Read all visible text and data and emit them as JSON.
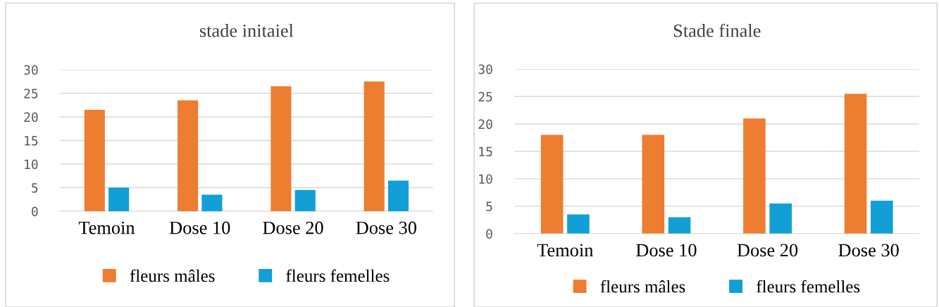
{
  "chart_data": [
    {
      "type": "bar",
      "title": "stade initaiel",
      "categories": [
        "Temoin",
        "Dose 10",
        "Dose 20",
        "Dose 30"
      ],
      "series": [
        {
          "name": "fleurs mâles",
          "color": "#ed7d31",
          "values": [
            21.5,
            23.5,
            26.5,
            27.5
          ]
        },
        {
          "name": "fleurs femelles",
          "color": "#119fd6",
          "values": [
            5,
            3.5,
            4.5,
            6.5
          ]
        }
      ],
      "ylim": [
        0,
        30
      ],
      "yticks": [
        0,
        5,
        10,
        15,
        20,
        25,
        30
      ],
      "grid": "y",
      "legend": "bottom"
    },
    {
      "type": "bar",
      "title": "Stade finale",
      "categories": [
        "Temoin",
        "Dose 10",
        "Dose 20",
        "Dose 30"
      ],
      "series": [
        {
          "name": "fleurs mâles",
          "color": "#ed7d31",
          "values": [
            18,
            18,
            21,
            25.5
          ]
        },
        {
          "name": "fleurs femelles",
          "color": "#119fd6",
          "values": [
            3.5,
            3,
            5.5,
            6
          ]
        }
      ],
      "ylim": [
        0,
        30
      ],
      "yticks": [
        0,
        5,
        10,
        15,
        20,
        25,
        30
      ],
      "grid": "y",
      "legend": "bottom"
    }
  ]
}
